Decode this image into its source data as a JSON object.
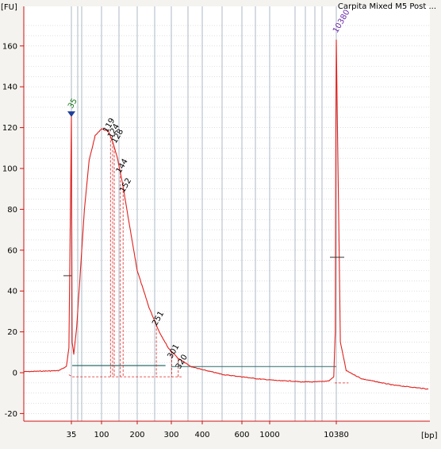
{
  "chart_data": {
    "type": "line",
    "title": "Carpita Mixed M5 Post ...",
    "ylabel": "[FU]",
    "xlabel": "[bp]",
    "ylim": [
      -22,
      175
    ],
    "yticks": [
      -20,
      0,
      20,
      40,
      60,
      80,
      100,
      120,
      140,
      160
    ],
    "xticks": [
      "35",
      "100",
      "200",
      "300",
      "400",
      "600",
      "1000",
      "10380"
    ],
    "grid": true,
    "colors": {
      "trace": "#e0201c",
      "axis": "#cc1111",
      "grid": "#9aa6b8",
      "marker_low": "#1a7a1a",
      "marker_high": "#6a2aa8",
      "region_line": "#2e6e6a",
      "peak_label": "#000000"
    },
    "markers": [
      {
        "label": "35",
        "x": 35,
        "y": 126,
        "color": "marker_low"
      },
      {
        "label": "10380",
        "x": 10380,
        "y": 163,
        "color": "marker_high"
      }
    ],
    "peak_labels": [
      "119",
      "124",
      "128",
      "144",
      "152",
      "251",
      "301",
      "320"
    ],
    "series": [
      {
        "x": [
          20,
          30,
          33,
          34,
          35,
          36,
          38,
          42,
          48,
          55,
          65,
          80,
          100,
          115,
          124,
          135,
          150,
          170,
          200,
          230,
          260,
          290,
          320,
          360,
          400,
          500,
          600,
          800,
          1000,
          1500,
          2000,
          3000,
          5000,
          8000,
          9500,
          10000,
          10200,
          10380,
          10550,
          10800,
          11500,
          13000,
          15000
        ],
        "y": [
          0.5,
          1,
          3,
          12,
          126,
          15,
          9,
          22,
          50,
          80,
          104,
          116,
          119.5,
          118,
          113,
          106,
          93,
          74,
          50,
          32,
          20,
          12,
          7,
          3,
          1.5,
          -1,
          -2,
          -3,
          -3.5,
          -4,
          -4,
          -4.5,
          -4.5,
          -4,
          -2,
          20,
          120,
          163,
          15,
          1,
          -3,
          -6,
          -8
        ]
      }
    ]
  }
}
